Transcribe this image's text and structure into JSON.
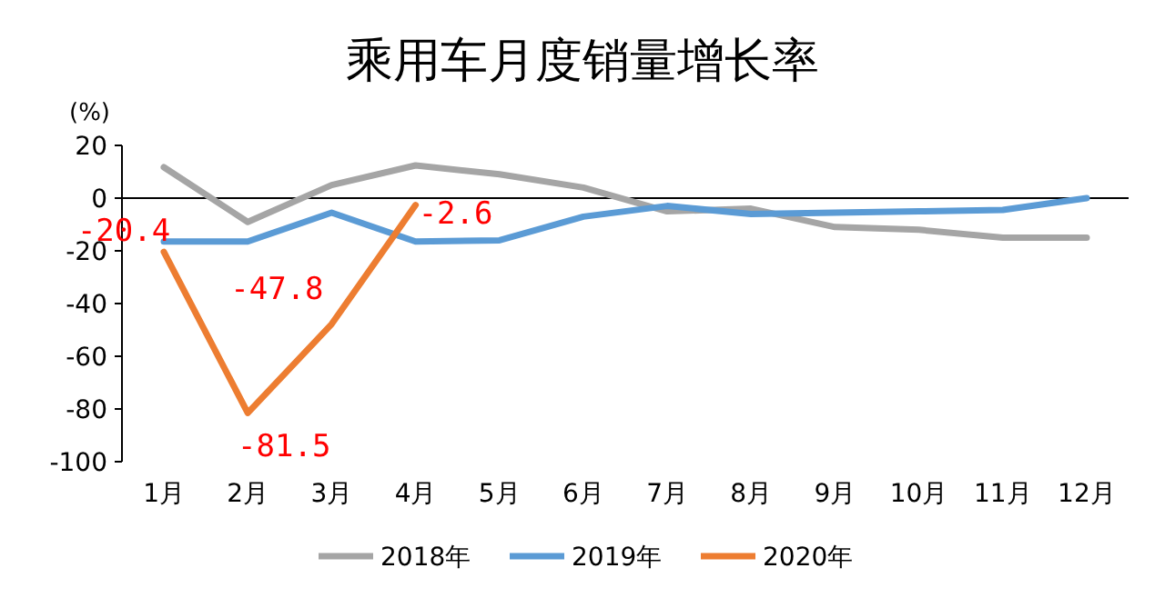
{
  "chart_data": {
    "type": "line",
    "title": "乘用车月度销量增长率",
    "ylabel": "(%)",
    "categories": [
      "1月",
      "2月",
      "3月",
      "4月",
      "5月",
      "6月",
      "7月",
      "8月",
      "9月",
      "10月",
      "11月",
      "12月"
    ],
    "ylim": [
      -100,
      20
    ],
    "yticks": [
      -100,
      -80,
      -60,
      -40,
      -20,
      0,
      20
    ],
    "legend": "bottom",
    "marker": "none",
    "line_style": "solid",
    "series": [
      {
        "name": "2018年",
        "color": "#a5a5a5",
        "values": [
          11.7,
          -9,
          5,
          12.4,
          9,
          4,
          -5,
          -4,
          -11,
          -12,
          -15,
          -15
        ]
      },
      {
        "name": "2019年",
        "color": "#5b9bd5",
        "values": [
          -16.5,
          -16.5,
          -5.5,
          -16.5,
          -16,
          -7,
          -3,
          -6,
          -5.5,
          -5,
          -4.5,
          0
        ]
      },
      {
        "name": "2020年",
        "color": "#ed7d31",
        "values": [
          -20.4,
          -81.5,
          -47.8,
          -2.6,
          null,
          null,
          null,
          null,
          null,
          null,
          null,
          null
        ],
        "value_labels": [
          "-20.4",
          "-81.5",
          "-47.8",
          "-2.6",
          null,
          null,
          null,
          null,
          null,
          null,
          null,
          null
        ]
      }
    ]
  }
}
